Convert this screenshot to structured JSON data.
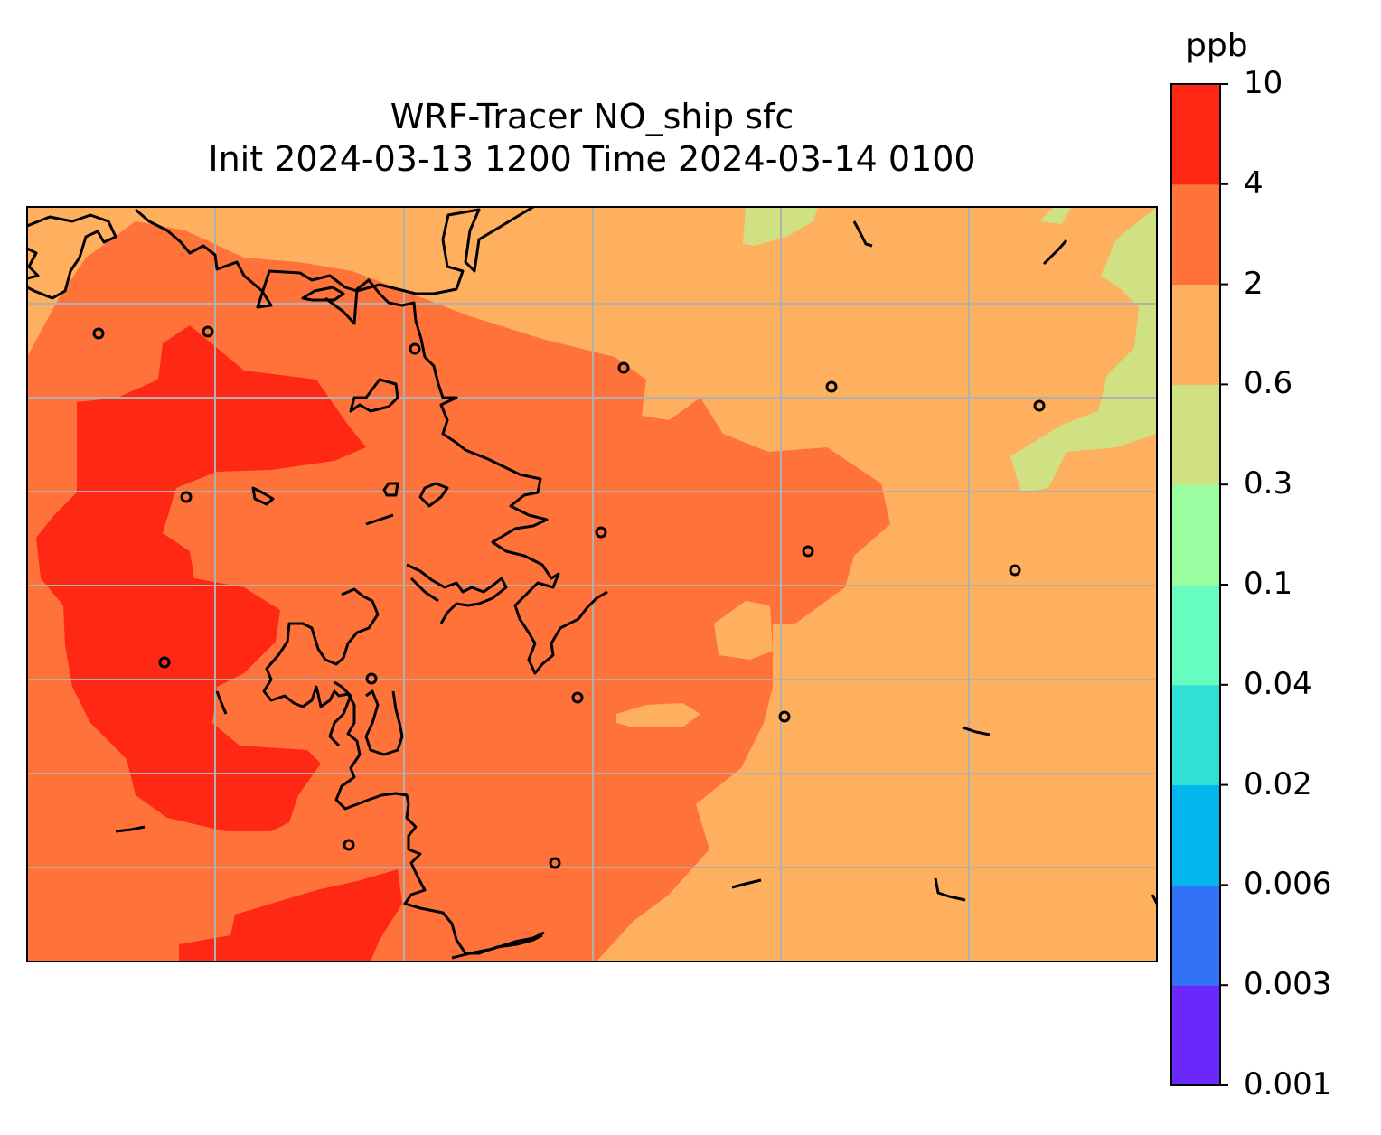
{
  "title": {
    "line1": "WRF-Tracer NO_ship sfc",
    "line2": "Init 2024-03-13 1200 Time 2024-03-14 0100"
  },
  "colorbar": {
    "unit": "ppb",
    "levels": [
      "0.001",
      "0.003",
      "0.006",
      "0.02",
      "0.04",
      "0.1",
      "0.3",
      "0.6",
      "2",
      "4",
      "10"
    ],
    "colors": [
      "#6a28fc",
      "#3272f6",
      "#02b6ee",
      "#30e0d5",
      "#66fdbe",
      "#9afea0",
      "#cfe183",
      "#ffb05f",
      "#ff733b",
      "#ff2815"
    ]
  },
  "map": {
    "background_level_color": "#ffb05f",
    "grid_color": "#b0b0b0",
    "coast_color": "#000000"
  }
}
